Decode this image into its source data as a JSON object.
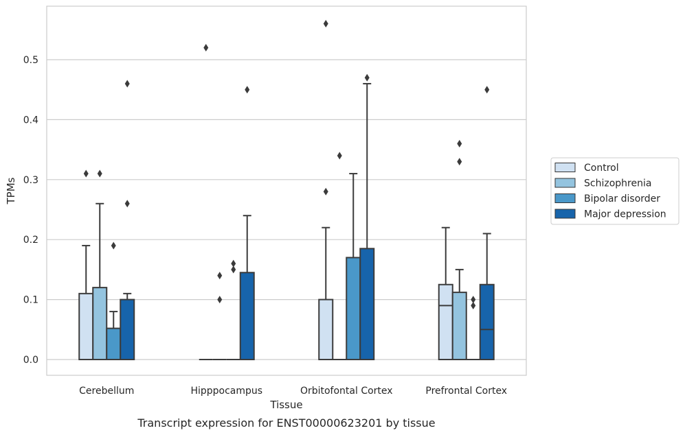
{
  "chart_data": {
    "type": "box",
    "title": "",
    "caption": "Transcript expression for ENST00000623201 by tissue",
    "xlabel": "Tissue",
    "ylabel": "TPMs",
    "ylim": [
      -0.027,
      0.59
    ],
    "yticks": [
      0.0,
      0.1,
      0.2,
      0.3,
      0.4,
      0.5
    ],
    "ytick_labels": [
      "0.0",
      "0.1",
      "0.2",
      "0.3",
      "0.4",
      "0.5"
    ],
    "grid": "horizontal",
    "legend_position": "right",
    "categories": [
      "Cerebellum",
      "Hipppocampus",
      "Orbitofontal Cortex",
      "Prefrontal Cortex"
    ],
    "series": [
      {
        "name": "Control",
        "color": "#d0e1f2",
        "boxes": [
          {
            "q1": 0.0,
            "median": 0.0,
            "q3": 0.11,
            "whisker_low": 0.0,
            "whisker_high": 0.19,
            "outliers": [
              0.31
            ]
          },
          {
            "q1": 0.0,
            "median": 0.0,
            "q3": 0.0,
            "whisker_low": 0.0,
            "whisker_high": 0.0,
            "outliers": [
              0.52
            ]
          },
          {
            "q1": 0.0,
            "median": 0.0,
            "q3": 0.1,
            "whisker_low": 0.0,
            "whisker_high": 0.22,
            "outliers": [
              0.28,
              0.56
            ]
          },
          {
            "q1": 0.0,
            "median": 0.09,
            "q3": 0.125,
            "whisker_low": 0.0,
            "whisker_high": 0.22,
            "outliers": []
          }
        ]
      },
      {
        "name": "Schizophrenia",
        "color": "#94c4df",
        "boxes": [
          {
            "q1": 0.0,
            "median": 0.0,
            "q3": 0.12,
            "whisker_low": 0.0,
            "whisker_high": 0.26,
            "outliers": [
              0.31
            ]
          },
          {
            "q1": 0.0,
            "median": 0.0,
            "q3": 0.0,
            "whisker_low": 0.0,
            "whisker_high": 0.0,
            "outliers": [
              0.1,
              0.14
            ]
          },
          {
            "q1": 0.0,
            "median": 0.0,
            "q3": 0.0,
            "whisker_low": 0.0,
            "whisker_high": 0.0,
            "outliers": [
              0.34
            ]
          },
          {
            "q1": 0.0,
            "median": 0.0,
            "q3": 0.112,
            "whisker_low": 0.0,
            "whisker_high": 0.15,
            "outliers": [
              0.33,
              0.36
            ]
          }
        ]
      },
      {
        "name": "Bipolar disorder",
        "color": "#4a98c9",
        "boxes": [
          {
            "q1": 0.0,
            "median": 0.0,
            "q3": 0.052,
            "whisker_low": 0.0,
            "whisker_high": 0.08,
            "outliers": [
              0.19
            ]
          },
          {
            "q1": 0.0,
            "median": 0.0,
            "q3": 0.0,
            "whisker_low": 0.0,
            "whisker_high": 0.0,
            "outliers": [
              0.15,
              0.16
            ]
          },
          {
            "q1": 0.0,
            "median": 0.0,
            "q3": 0.17,
            "whisker_low": 0.0,
            "whisker_high": 0.31,
            "outliers": []
          },
          {
            "q1": 0.0,
            "median": 0.0,
            "q3": 0.0,
            "whisker_low": 0.0,
            "whisker_high": 0.0,
            "outliers": [
              0.09,
              0.1
            ]
          }
        ]
      },
      {
        "name": "Major depression",
        "color": "#1764ab",
        "boxes": [
          {
            "q1": 0.0,
            "median": 0.0,
            "q3": 0.1,
            "whisker_low": 0.0,
            "whisker_high": 0.11,
            "outliers": [
              0.26,
              0.46
            ]
          },
          {
            "q1": 0.0,
            "median": 0.0,
            "q3": 0.145,
            "whisker_low": 0.0,
            "whisker_high": 0.24,
            "outliers": [
              0.45
            ]
          },
          {
            "q1": 0.0,
            "median": 0.0,
            "q3": 0.185,
            "whisker_low": 0.0,
            "whisker_high": 0.46,
            "outliers": [
              0.47
            ]
          },
          {
            "q1": 0.0,
            "median": 0.05,
            "q3": 0.125,
            "whisker_low": 0.0,
            "whisker_high": 0.21,
            "outliers": [
              0.45
            ]
          }
        ]
      }
    ]
  }
}
